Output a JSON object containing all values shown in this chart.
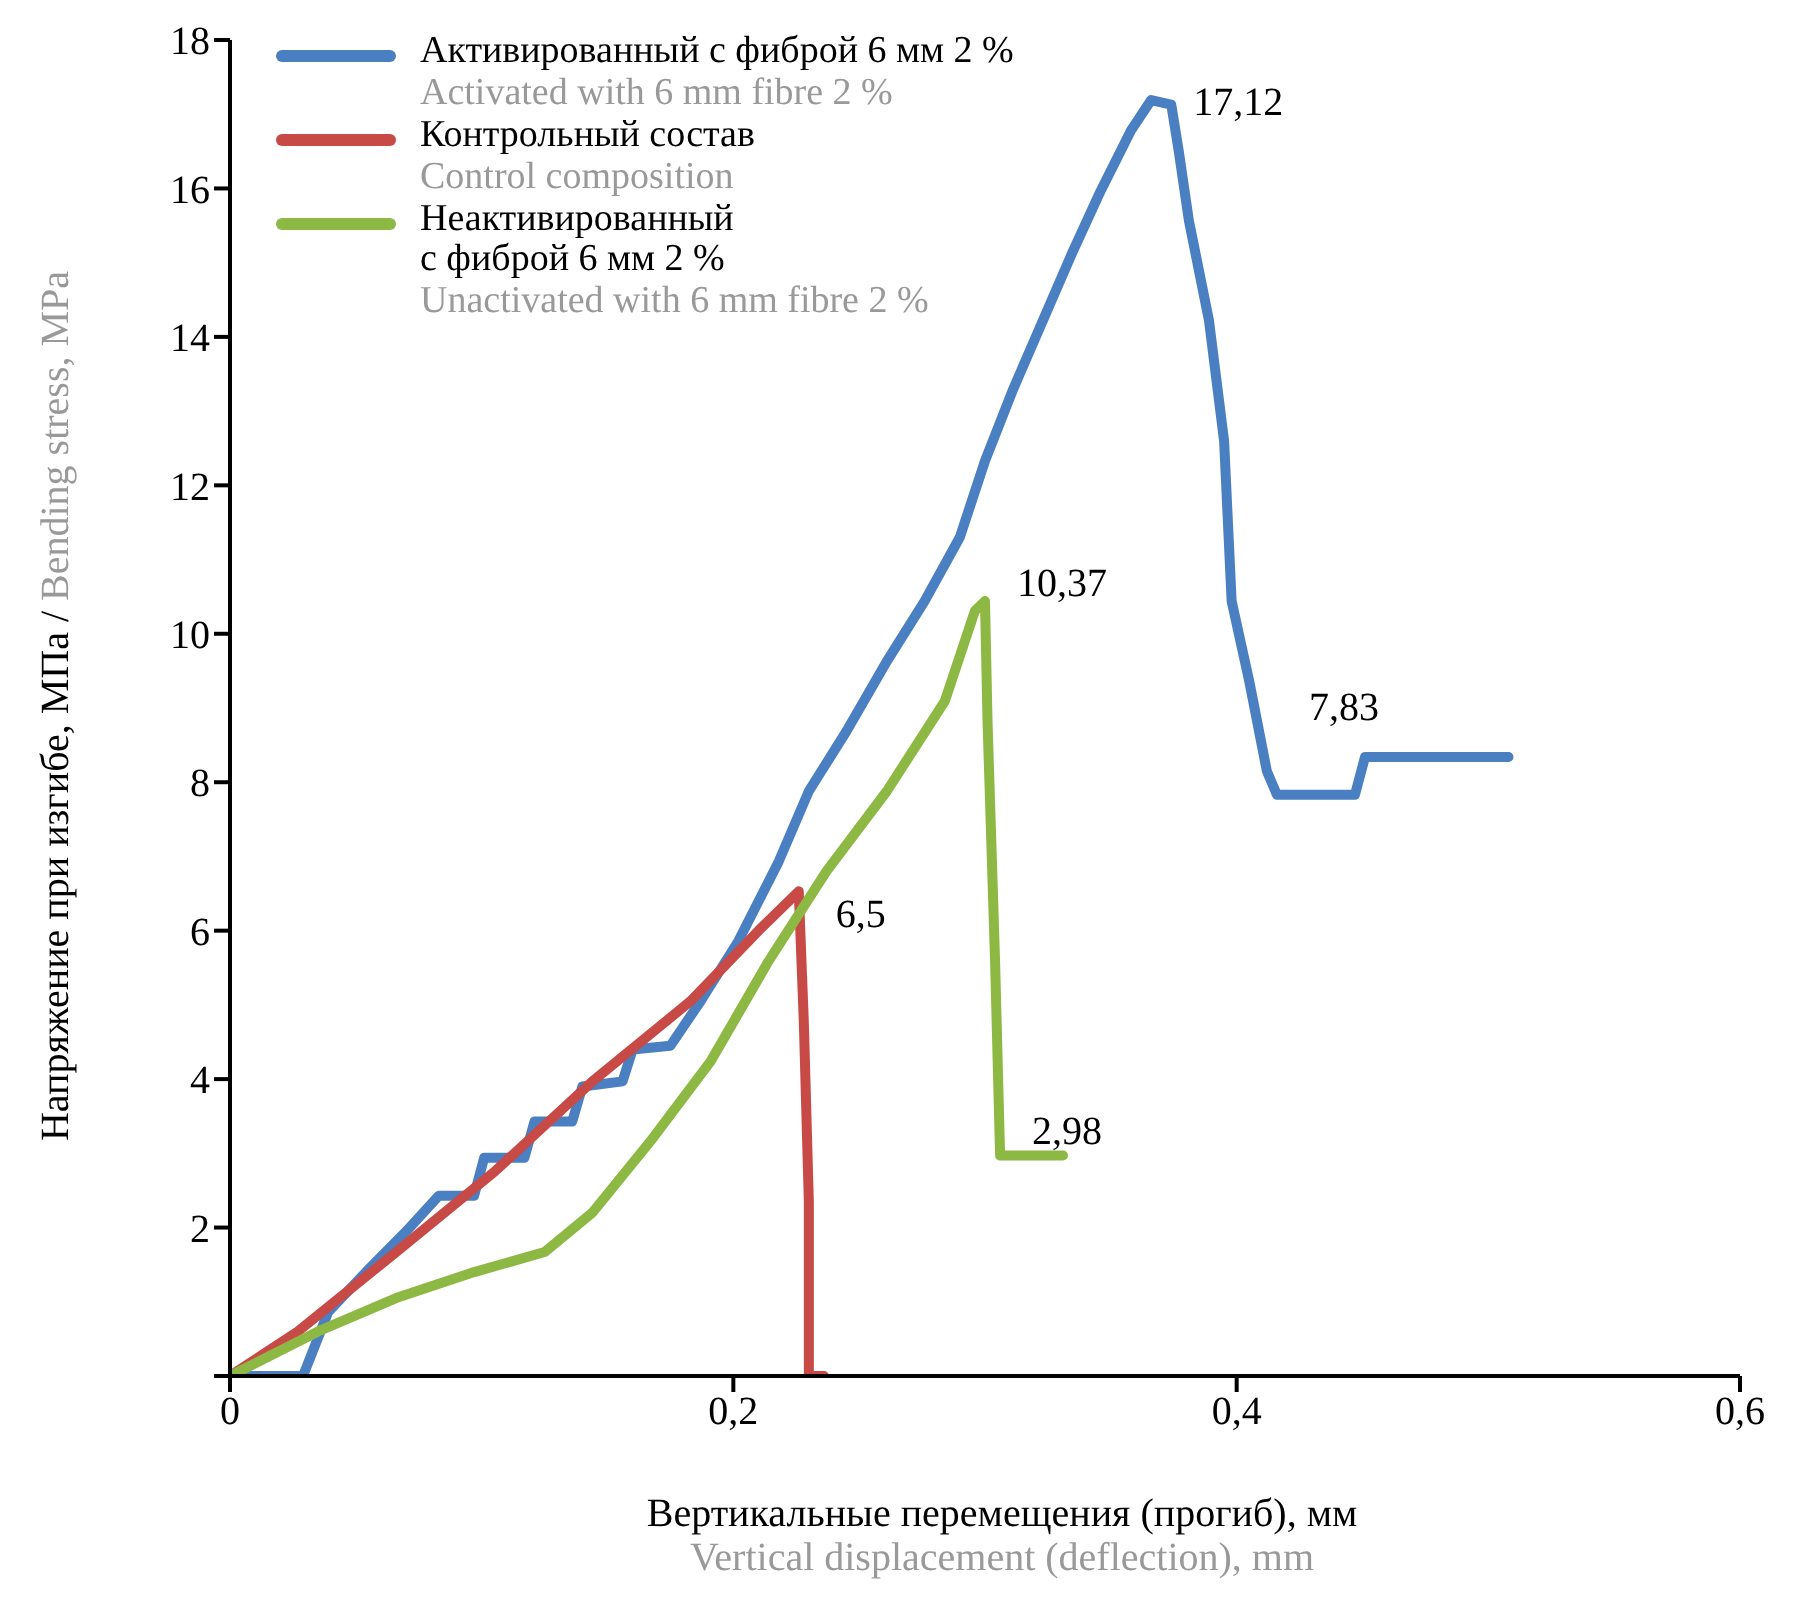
{
  "chart_data": {
    "type": "line",
    "xlabel": "Вертикальные перемещения (прогиб), мм\nVertical displacement (deflection), mm",
    "ylabel": "Напряжение при изгибе, МПа / Bending stress, MPa",
    "xlim": [
      0,
      0.6
    ],
    "ylim": [
      0,
      18
    ],
    "xticks": [
      {
        "value": 0,
        "label": "0"
      },
      {
        "value": 0.2,
        "label": "0,2"
      },
      {
        "value": 0.4,
        "label": "0,4"
      },
      {
        "value": 0.6,
        "label": "0,6"
      }
    ],
    "yticks": [
      {
        "value": 0,
        "label": null
      },
      2,
      4,
      6,
      8,
      10,
      12,
      14,
      16,
      18
    ],
    "grid": false,
    "legend": "top left",
    "marker": "none",
    "line_style": "solid",
    "series": [
      {
        "name": "Активированный с фиброй 6 мм 2 %\nActivated with 6 mm fibre 2 %",
        "color": "#4a7fc1",
        "x": [
          0,
          0.029,
          0.039,
          0.054,
          0.07,
          0.083,
          0.097,
          0.101,
          0.117,
          0.121,
          0.136,
          0.14,
          0.156,
          0.16,
          0.175,
          0.187,
          0.202,
          0.218,
          0.23,
          0.245,
          0.261,
          0.276,
          0.29,
          0.3,
          0.311,
          0.323,
          0.335,
          0.346,
          0.358,
          0.366,
          0.374,
          0.377,
          0.381,
          0.389,
          0.395,
          0.398,
          0.405,
          0.412,
          0.416,
          0.447,
          0.451,
          0.508
        ],
        "values": [
          0,
          0,
          0.86,
          1.4,
          1.95,
          2.43,
          2.43,
          2.94,
          2.94,
          3.43,
          3.43,
          3.9,
          3.97,
          4.4,
          4.45,
          5.05,
          5.86,
          6.93,
          7.88,
          8.69,
          9.63,
          10.44,
          11.3,
          12.33,
          13.28,
          14.22,
          15.16,
          15.97,
          16.78,
          17.19,
          17.13,
          16.5,
          15.57,
          14.22,
          12.6,
          10.44,
          9.36,
          8.15,
          7.83,
          7.83,
          8.34,
          8.34
        ]
      },
      {
        "name": "Контрольный состав\nControl composition",
        "color": "#c84a46",
        "x": [
          0,
          0.027,
          0.066,
          0.105,
          0.144,
          0.183,
          0.21,
          0.226,
          0.228,
          0.23,
          0.23,
          0.236
        ],
        "values": [
          0,
          0.6,
          1.67,
          2.75,
          3.97,
          5.05,
          6.0,
          6.53,
          4.78,
          2.35,
          0,
          0
        ]
      },
      {
        "name": "Неактивированный\nс фиброй 6 мм 2 %\nUnactivated with 6 mm fibre 2 %",
        "color": "#8db843",
        "x": [
          0,
          0.035,
          0.066,
          0.097,
          0.125,
          0.144,
          0.167,
          0.191,
          0.214,
          0.237,
          0.261,
          0.284,
          0.296,
          0.3,
          0.301,
          0.304,
          0.306,
          0.331
        ],
        "values": [
          0,
          0.6,
          1.05,
          1.4,
          1.67,
          2.2,
          3.16,
          4.24,
          5.59,
          6.8,
          7.88,
          9.09,
          10.31,
          10.44,
          8.82,
          5.59,
          2.97,
          2.97
        ]
      }
    ],
    "annotations": [
      {
        "text": "17,12",
        "x": 0.37,
        "y": 17.12
      },
      {
        "text": "10,37",
        "x": 0.3,
        "y": 10.37
      },
      {
        "text": "6,5",
        "x": 0.228,
        "y": 6.5
      },
      {
        "text": "2,98",
        "x": 0.306,
        "y": 2.98
      },
      {
        "text": "7,83",
        "x": 0.416,
        "y": 7.83
      }
    ]
  }
}
